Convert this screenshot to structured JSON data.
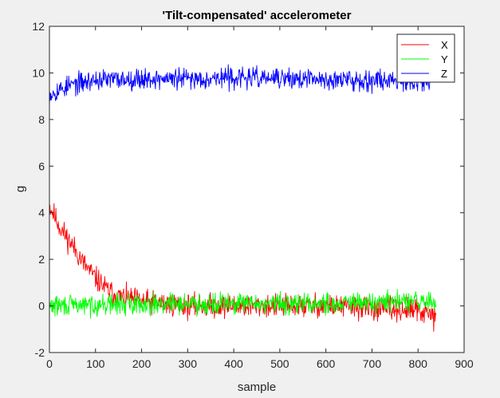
{
  "chart_data": {
    "type": "line",
    "title": "'Tilt-compensated' accelerometer",
    "xlabel": "sample",
    "ylabel": "g",
    "xlim": [
      0,
      900
    ],
    "ylim": [
      -2,
      12
    ],
    "xticks": [
      0,
      100,
      200,
      300,
      400,
      500,
      600,
      700,
      800,
      900
    ],
    "yticks": [
      -2,
      0,
      2,
      4,
      6,
      8,
      10,
      12
    ],
    "grid": false,
    "legend_position": "top-right",
    "n_samples": 840,
    "series": [
      {
        "name": "X",
        "color": "#ff0000",
        "description": "exponential decay from about 4.2 g toward about 0, with noise around 0 after sample ~150",
        "values_at_samples": [
          {
            "x": 0,
            "y": 4.3
          },
          {
            "x": 25,
            "y": 3.3
          },
          {
            "x": 50,
            "y": 2.6
          },
          {
            "x": 75,
            "y": 1.8
          },
          {
            "x": 100,
            "y": 1.2
          },
          {
            "x": 125,
            "y": 0.7
          },
          {
            "x": 150,
            "y": 0.4
          },
          {
            "x": 200,
            "y": 0.2
          },
          {
            "x": 300,
            "y": 0.0
          },
          {
            "x": 400,
            "y": 0.0
          },
          {
            "x": 500,
            "y": 0.0
          },
          {
            "x": 600,
            "y": 0.0
          },
          {
            "x": 700,
            "y": -0.1
          },
          {
            "x": 800,
            "y": -0.2
          },
          {
            "x": 840,
            "y": -0.5
          }
        ],
        "noise_amplitude": 0.45
      },
      {
        "name": "Y",
        "color": "#00ff00",
        "description": "noise around 0 g throughout",
        "values_at_samples": [
          {
            "x": 0,
            "y": 0.0
          },
          {
            "x": 200,
            "y": 0.1
          },
          {
            "x": 400,
            "y": 0.1
          },
          {
            "x": 600,
            "y": 0.1
          },
          {
            "x": 840,
            "y": 0.2
          }
        ],
        "noise_amplitude": 0.4
      },
      {
        "name": "Z",
        "color": "#0000ff",
        "description": "starts near 9.1 g, rises to about 9.7 g by sample ~100 and stays noisy around 9.7",
        "values_at_samples": [
          {
            "x": 0,
            "y": 9.1
          },
          {
            "x": 25,
            "y": 9.3
          },
          {
            "x": 50,
            "y": 9.5
          },
          {
            "x": 75,
            "y": 9.6
          },
          {
            "x": 100,
            "y": 9.7
          },
          {
            "x": 200,
            "y": 9.75
          },
          {
            "x": 300,
            "y": 9.75
          },
          {
            "x": 400,
            "y": 9.8
          },
          {
            "x": 500,
            "y": 9.75
          },
          {
            "x": 600,
            "y": 9.7
          },
          {
            "x": 700,
            "y": 9.7
          },
          {
            "x": 840,
            "y": 9.7
          }
        ],
        "noise_amplitude": 0.4
      }
    ]
  }
}
